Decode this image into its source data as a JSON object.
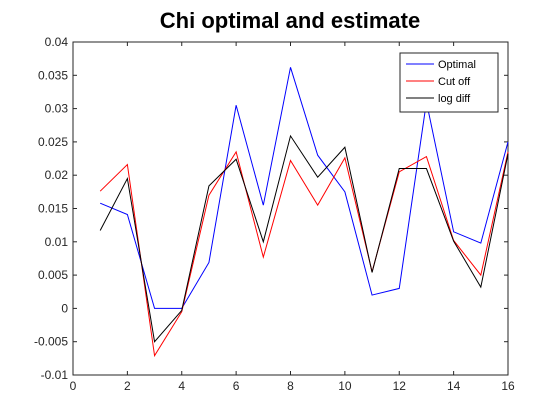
{
  "chart_data": {
    "type": "line",
    "title": "Chi optimal and estimate",
    "xlabel": "",
    "ylabel": "",
    "xlim": [
      0,
      16
    ],
    "ylim": [
      -0.01,
      0.04
    ],
    "xticks": [
      0,
      2,
      4,
      6,
      8,
      10,
      12,
      14,
      16
    ],
    "xtick_labels": [
      "0",
      "2",
      "4",
      "6",
      "8",
      "10",
      "12",
      "14",
      "16"
    ],
    "yticks": [
      -0.01,
      -0.005,
      0,
      0.005,
      0.01,
      0.015,
      0.02,
      0.025,
      0.03,
      0.035,
      0.04
    ],
    "ytick_labels": [
      "-0.01",
      "-0.005",
      "0",
      "0.005",
      "0.01",
      "0.015",
      "0.02",
      "0.025",
      "0.03",
      "0.035",
      "0.04"
    ],
    "grid": false,
    "legend_position": "top-right",
    "x": [
      1,
      2,
      3,
      4,
      5,
      6,
      7,
      8,
      9,
      10,
      11,
      12,
      13,
      14,
      15,
      16
    ],
    "series": [
      {
        "name": "Optimal",
        "color": "#0000ff",
        "values": [
          0.0158,
          0.0141,
          0.0,
          0.0,
          0.0069,
          0.0305,
          0.0155,
          0.0362,
          0.023,
          0.0175,
          0.002,
          0.003,
          0.031,
          0.0115,
          0.0098,
          0.025
        ]
      },
      {
        "name": "Cut off",
        "color": "#ff0000",
        "values": [
          0.0176,
          0.0216,
          -0.0071,
          -0.0005,
          0.017,
          0.0235,
          0.0077,
          0.0222,
          0.0155,
          0.0226,
          0.0055,
          0.0205,
          0.0228,
          0.0102,
          0.005,
          0.0235
        ]
      },
      {
        "name": "log diff",
        "color": "#000000",
        "values": [
          0.0117,
          0.0195,
          -0.005,
          -0.0003,
          0.0184,
          0.0224,
          0.01,
          0.0259,
          0.0197,
          0.0242,
          0.0054,
          0.021,
          0.021,
          0.0101,
          0.0032,
          0.0232
        ]
      }
    ]
  }
}
